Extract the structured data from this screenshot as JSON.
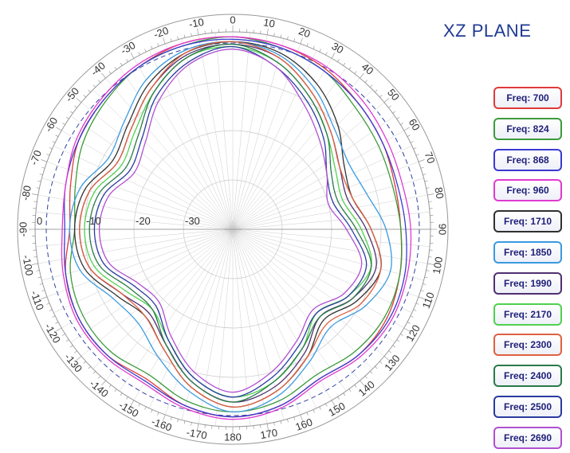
{
  "title": "XZ PLANE",
  "chart_data": {
    "type": "polar-line",
    "title": "XZ PLANE",
    "angle_unit": "degrees",
    "angle_ticks": [
      "0",
      "10",
      "20",
      "30",
      "40",
      "50",
      "60",
      "70",
      "80",
      "90",
      "100",
      "110",
      "120",
      "130",
      "140",
      "150",
      "160",
      "170",
      "180",
      "-170",
      "-160",
      "-150",
      "-140",
      "-130",
      "-120",
      "-110",
      "-100",
      "-90",
      "-80",
      "-70",
      "-60",
      "-50",
      "-40",
      "-30",
      "-20",
      "-10"
    ],
    "radial_ticks": [
      "0",
      "-10",
      "-20",
      "-30"
    ],
    "radial_range": [
      -40,
      0
    ],
    "grid": true,
    "legend_position": "right",
    "angles": [
      0,
      15,
      30,
      45,
      60,
      75,
      90,
      105,
      120,
      135,
      150,
      165,
      180,
      195,
      210,
      225,
      240,
      255,
      270,
      285,
      300,
      315,
      330,
      345
    ],
    "series": [
      {
        "name": "Freq: 700",
        "color": "#e03a3a",
        "values": [
          -1,
          -1.5,
          -2.5,
          -4,
          -5,
          -6,
          -6,
          -5,
          -4,
          -4,
          -5,
          -3,
          -2,
          -3,
          -5,
          -4,
          -4,
          -5,
          -7,
          -6,
          -4,
          -3,
          -2,
          -1
        ]
      },
      {
        "name": "Freq: 824",
        "color": "#3c9a3c",
        "values": [
          -1,
          -2,
          -3,
          -5,
          -6,
          -6.5,
          -6,
          -5,
          -4.5,
          -5,
          -6,
          -4,
          -3,
          -4,
          -6,
          -5,
          -5,
          -6,
          -8,
          -7,
          -5,
          -3.5,
          -2,
          -1.5
        ]
      },
      {
        "name": "Freq: 868",
        "color": "#3a3ad0",
        "values": [
          -1.5,
          -2,
          -3,
          -4,
          -5,
          -5.5,
          -5,
          -4,
          -3.5,
          -4,
          -5,
          -3,
          -2,
          -3,
          -4.5,
          -4,
          -4,
          -5,
          -6,
          -5,
          -4,
          -3,
          -2,
          -1.5
        ]
      },
      {
        "name": "Freq: 960",
        "color": "#e03ad0",
        "values": [
          -1,
          -1.5,
          -2,
          -3,
          -4,
          -4.5,
          -4,
          -3.5,
          -3,
          -3.5,
          -4.5,
          -2.5,
          -1.5,
          -2.5,
          -4,
          -3.5,
          -3.5,
          -4.5,
          -5.5,
          -5,
          -3.5,
          -2.5,
          -1.5,
          -1
        ]
      },
      {
        "name": "Freq: 1710",
        "color": "#303030",
        "values": [
          -2,
          -3,
          -6,
          -10,
          -14,
          -15,
          -12,
          -9,
          -11,
          -14,
          -10,
          -6,
          -4,
          -7,
          -12,
          -15,
          -13,
          -9,
          -8,
          -9,
          -12,
          -10,
          -6,
          -3
        ]
      },
      {
        "name": "Freq: 1850",
        "color": "#3a9ae0",
        "values": [
          -2,
          -3.5,
          -7,
          -11,
          -13,
          -12,
          -9,
          -7,
          -9,
          -12,
          -9,
          -5,
          -3,
          -6,
          -10,
          -13,
          -12,
          -8,
          -7,
          -8,
          -11,
          -9,
          -5,
          -2.5
        ]
      },
      {
        "name": "Freq: 1990",
        "color": "#503070",
        "values": [
          -2.5,
          -4,
          -8,
          -12,
          -15,
          -16,
          -13,
          -10,
          -12,
          -15,
          -11,
          -7,
          -5,
          -8,
          -13,
          -16,
          -14,
          -10,
          -9,
          -10,
          -13,
          -11,
          -7,
          -3.5
        ]
      },
      {
        "name": "Freq: 2170",
        "color": "#50d050",
        "values": [
          -3,
          -5,
          -9,
          -13,
          -16,
          -17,
          -14,
          -11,
          -13,
          -16,
          -12,
          -8,
          -6,
          -9,
          -14,
          -17,
          -15,
          -11,
          -10,
          -11,
          -14,
          -12,
          -8,
          -4
        ]
      },
      {
        "name": "Freq: 2300",
        "color": "#e06040",
        "values": [
          -2,
          -4,
          -8,
          -12,
          -15,
          -15,
          -12,
          -9,
          -10,
          -13,
          -10,
          -6,
          -4,
          -7,
          -12,
          -15,
          -14,
          -10,
          -9,
          -10,
          -13,
          -11,
          -7,
          -3
        ]
      },
      {
        "name": "Freq: 2400",
        "color": "#2a7a4a",
        "values": [
          -2.5,
          -5,
          -9,
          -13,
          -17,
          -18,
          -15,
          -11,
          -12,
          -15,
          -12,
          -8,
          -5,
          -8,
          -13,
          -17,
          -16,
          -12,
          -11,
          -12,
          -15,
          -13,
          -8,
          -4
        ]
      },
      {
        "name": "Freq: 2500",
        "color": "#2a3aa0",
        "values": [
          -3,
          -6,
          -10,
          -14,
          -18,
          -19,
          -16,
          -12,
          -13,
          -16,
          -13,
          -9,
          -6,
          -9,
          -14,
          -18,
          -17,
          -13,
          -12,
          -13,
          -16,
          -14,
          -9,
          -5
        ]
      },
      {
        "name": "Freq: 2690",
        "color": "#b050d0",
        "values": [
          -3.5,
          -6,
          -11,
          -15,
          -18,
          -20,
          -17,
          -13,
          -14,
          -17,
          -14,
          -10,
          -7,
          -10,
          -15,
          -19,
          -18,
          -14,
          -13,
          -14,
          -17,
          -15,
          -10,
          -5.5
        ]
      }
    ]
  }
}
